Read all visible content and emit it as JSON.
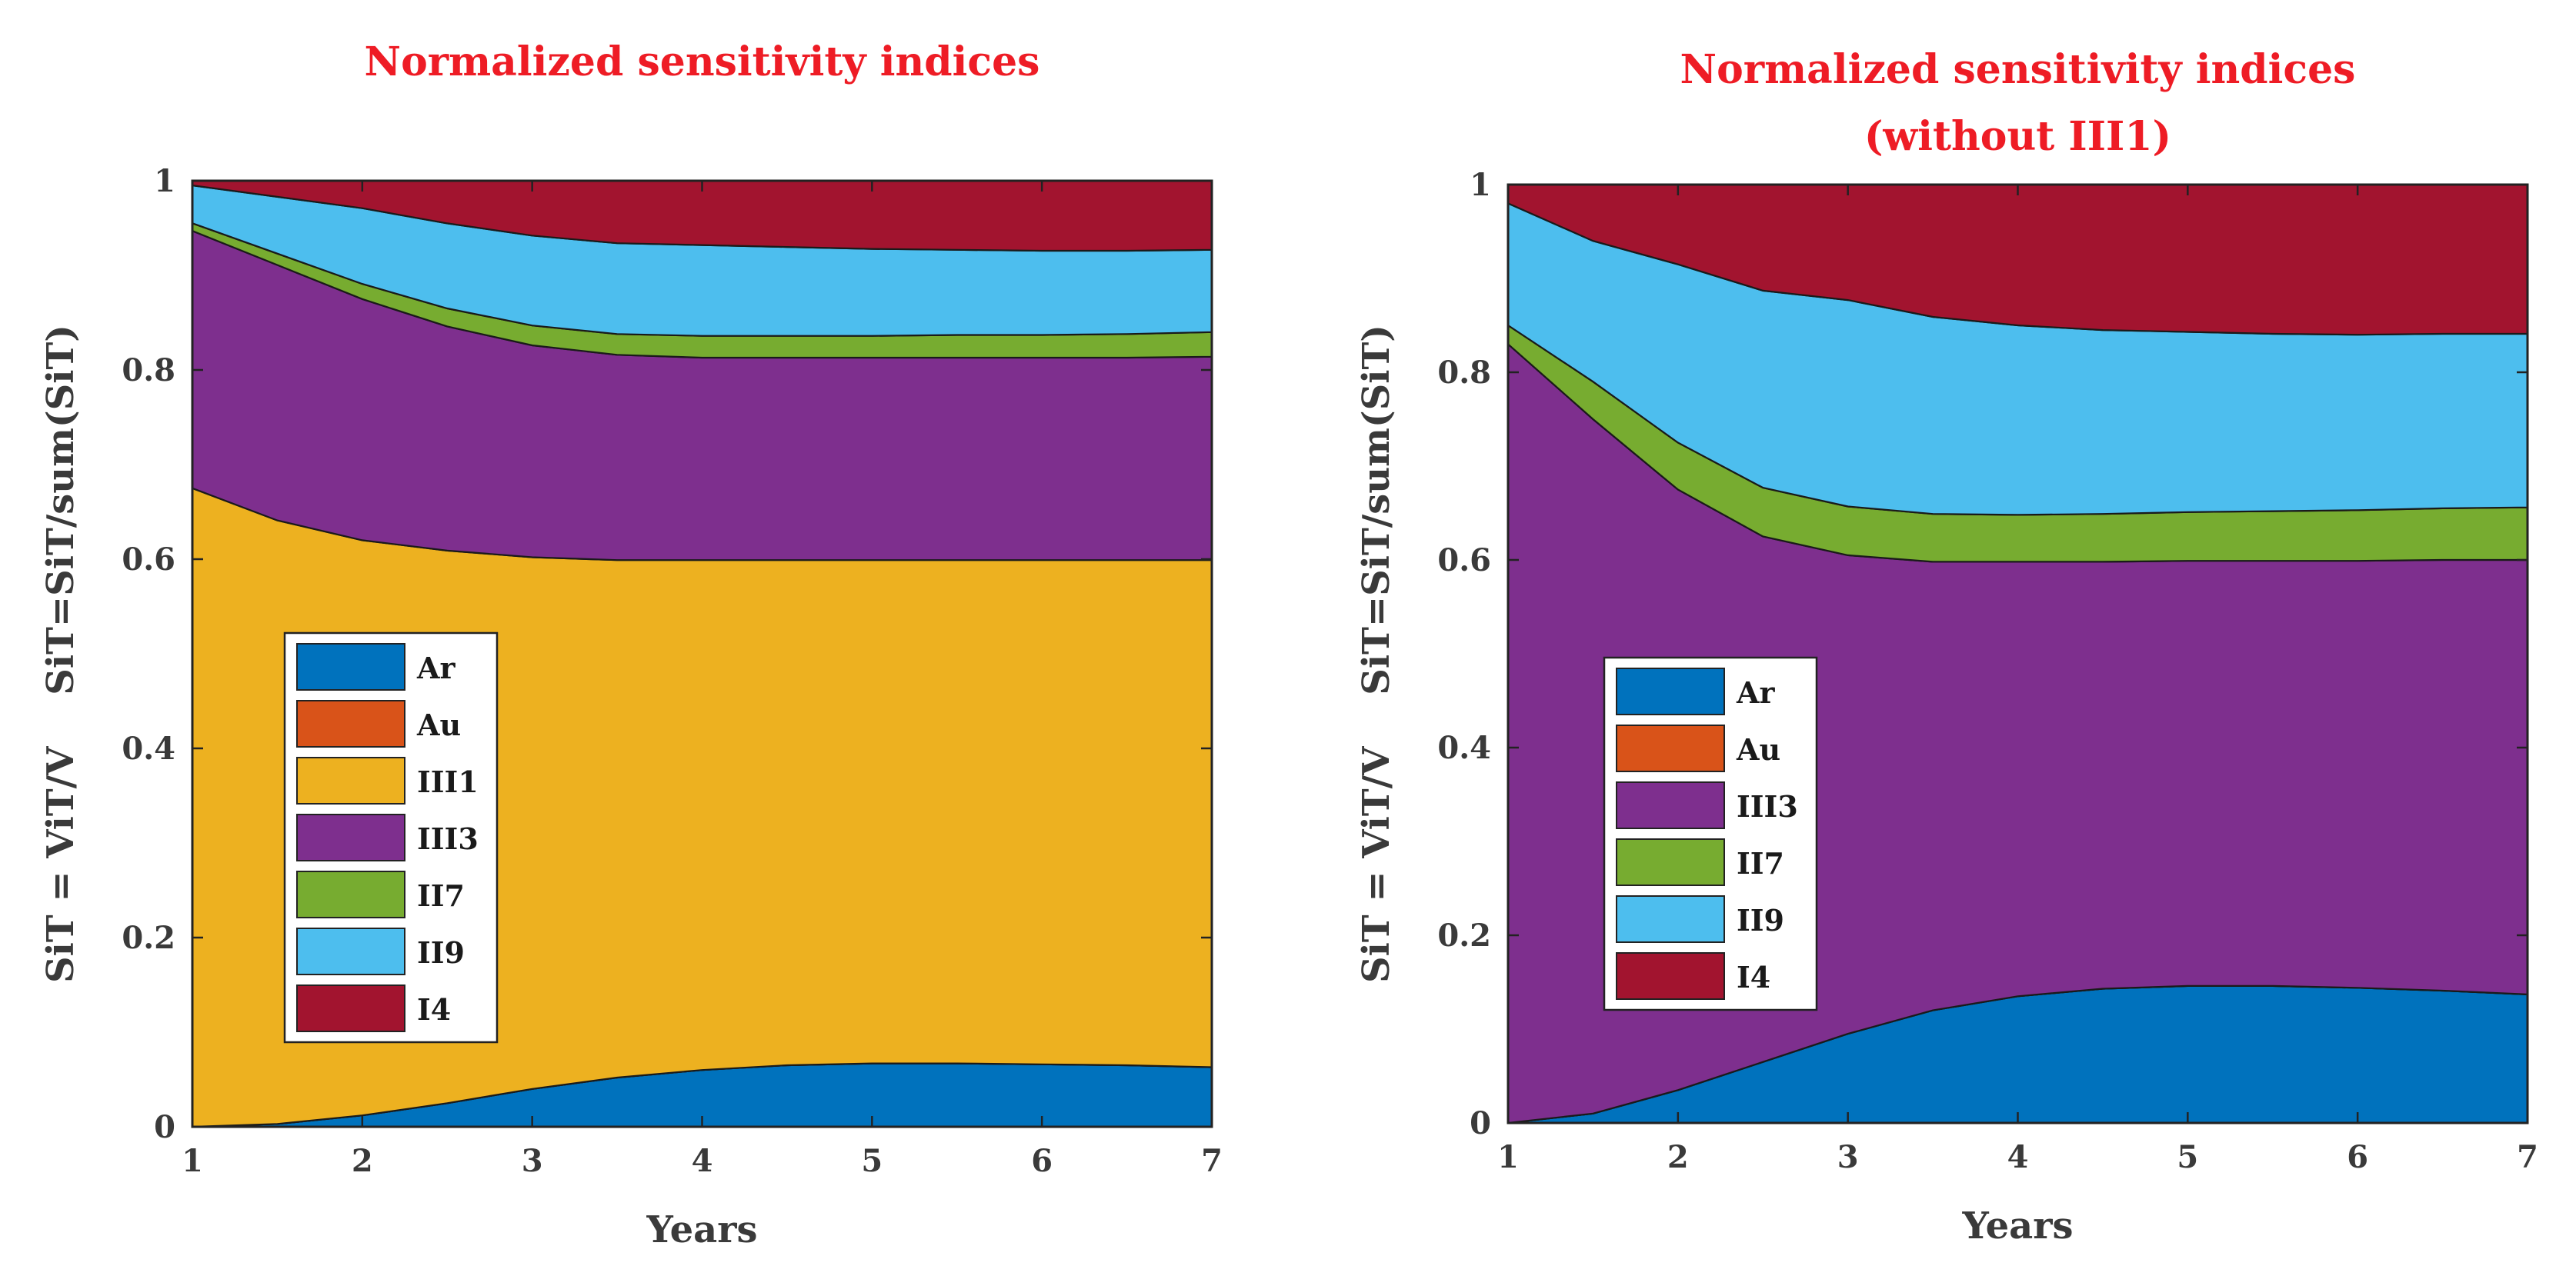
{
  "chart_data": [
    {
      "type": "area",
      "stacked": true,
      "title": "Normalized sensitivity indices",
      "subtitle": "",
      "xlabel": "Years",
      "ylabel": "SiT = ViT/V    SiT=SiT/sum(SiT)",
      "xlim": [
        1,
        7
      ],
      "ylim": [
        0,
        1
      ],
      "xticks": [
        1,
        2,
        3,
        4,
        5,
        6,
        7
      ],
      "yticks": [
        0,
        0.2,
        0.4,
        0.6,
        0.8,
        1
      ],
      "x": [
        1,
        1.5,
        2,
        2.5,
        3,
        3.5,
        4,
        4.5,
        5,
        5.5,
        6,
        6.5,
        7
      ],
      "grid": false,
      "legend": "left",
      "series": [
        {
          "name": "Ar",
          "color": "#0072bd",
          "values": [
            0,
            0.003,
            0.012,
            0.025,
            0.04,
            0.052,
            0.06,
            0.065,
            0.067,
            0.067,
            0.066,
            0.065,
            0.063
          ]
        },
        {
          "name": "Au",
          "color": "#d95319",
          "values": [
            0,
            0,
            0,
            0,
            0,
            0,
            0,
            0,
            0,
            0,
            0,
            0,
            0
          ]
        },
        {
          "name": "III1",
          "color": "#edb120",
          "values": [
            0.675,
            0.638,
            0.608,
            0.584,
            0.562,
            0.547,
            0.539,
            0.534,
            0.532,
            0.532,
            0.533,
            0.534,
            0.536
          ]
        },
        {
          "name": "III3",
          "color": "#7e2f8e",
          "values": [
            0.272,
            0.27,
            0.255,
            0.237,
            0.224,
            0.217,
            0.214,
            0.214,
            0.214,
            0.214,
            0.214,
            0.214,
            0.215
          ]
        },
        {
          "name": "II7",
          "color": "#77ac30",
          "values": [
            0.008,
            0.012,
            0.016,
            0.019,
            0.021,
            0.022,
            0.023,
            0.023,
            0.023,
            0.024,
            0.024,
            0.025,
            0.026
          ]
        },
        {
          "name": "II9",
          "color": "#4dbeee",
          "values": [
            0.04,
            0.06,
            0.08,
            0.09,
            0.095,
            0.096,
            0.096,
            0.094,
            0.092,
            0.09,
            0.089,
            0.088,
            0.087
          ]
        },
        {
          "name": "I4",
          "color": "#a2142f",
          "values": [
            0.005,
            0.017,
            0.029,
            0.045,
            0.058,
            0.066,
            0.068,
            0.07,
            0.072,
            0.073,
            0.074,
            0.074,
            0.073
          ]
        }
      ]
    },
    {
      "type": "area",
      "stacked": true,
      "title": "Normalized sensitivity indices",
      "subtitle": "(without III1)",
      "xlabel": "Years",
      "ylabel": "SiT = ViT/V    SiT=SiT/sum(SiT)",
      "xlim": [
        1,
        7
      ],
      "ylim": [
        0,
        1
      ],
      "xticks": [
        1,
        2,
        3,
        4,
        5,
        6,
        7
      ],
      "yticks": [
        0,
        0.2,
        0.4,
        0.6,
        0.8,
        1
      ],
      "x": [
        1,
        1.5,
        2,
        2.5,
        3,
        3.5,
        4,
        4.5,
        5,
        5.5,
        6,
        6.5,
        7
      ],
      "grid": false,
      "legend": "left",
      "series": [
        {
          "name": "Ar",
          "color": "#0072bd",
          "values": [
            0,
            0.01,
            0.035,
            0.065,
            0.095,
            0.12,
            0.135,
            0.143,
            0.146,
            0.146,
            0.144,
            0.141,
            0.137
          ]
        },
        {
          "name": "Au",
          "color": "#d95319",
          "values": [
            0,
            0,
            0,
            0,
            0,
            0,
            0,
            0,
            0,
            0,
            0,
            0,
            0
          ]
        },
        {
          "name": "III3",
          "color": "#7e2f8e",
          "values": [
            0.83,
            0.74,
            0.64,
            0.56,
            0.51,
            0.478,
            0.463,
            0.455,
            0.453,
            0.453,
            0.455,
            0.459,
            0.463
          ]
        },
        {
          "name": "II7",
          "color": "#77ac30",
          "values": [
            0.02,
            0.04,
            0.05,
            0.052,
            0.052,
            0.051,
            0.05,
            0.051,
            0.052,
            0.053,
            0.054,
            0.055,
            0.056
          ]
        },
        {
          "name": "II9",
          "color": "#4dbeee",
          "values": [
            0.13,
            0.15,
            0.19,
            0.21,
            0.22,
            0.21,
            0.202,
            0.196,
            0.192,
            0.189,
            0.187,
            0.186,
            0.185
          ]
        },
        {
          "name": "I4",
          "color": "#a2142f",
          "values": [
            0.02,
            0.06,
            0.085,
            0.113,
            0.123,
            0.141,
            0.15,
            0.155,
            0.157,
            0.159,
            0.16,
            0.159,
            0.159
          ]
        }
      ]
    }
  ]
}
